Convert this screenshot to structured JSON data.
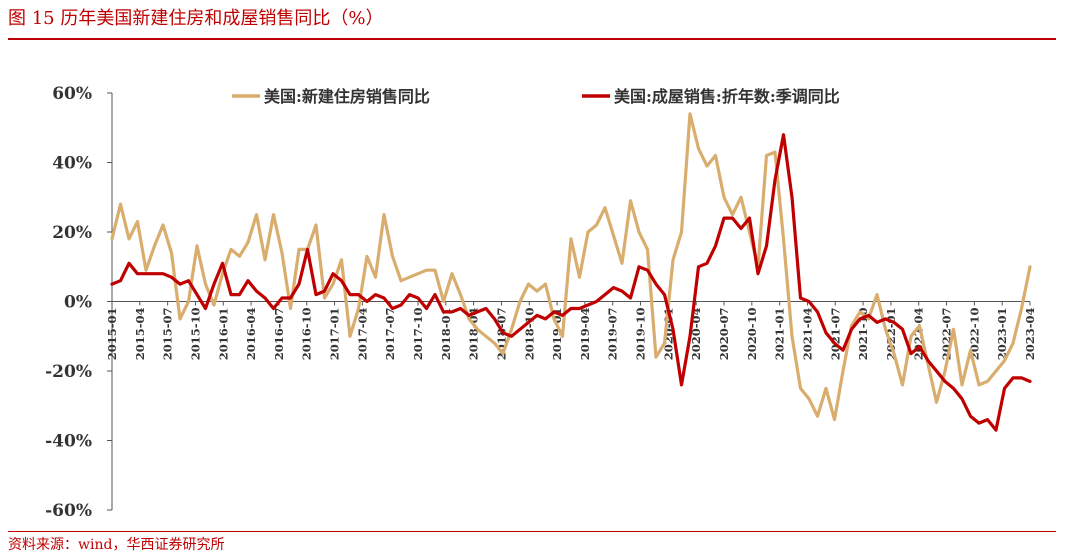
{
  "figure_title": "图 15   历年美国新建住房和成屋销售同比（%）",
  "source_note": "资料来源：wind，华西证券研究所",
  "chart_data": {
    "type": "line",
    "title": "",
    "xlabel": "",
    "ylabel": "",
    "ylim": [
      -60,
      60
    ],
    "yticks": [
      -60,
      -40,
      -20,
      0,
      20,
      40,
      60
    ],
    "ytick_format": "percent",
    "grid": false,
    "legend_position": "top",
    "x_tick_labels": [
      "2015-01",
      "2015-04",
      "2015-07",
      "2015-10",
      "2016-01",
      "2016-04",
      "2016-07",
      "2016-10",
      "2017-01",
      "2017-04",
      "2017-07",
      "2017-10",
      "2018-01",
      "2018-04",
      "2018-07",
      "2018-10",
      "2019-01",
      "2019-04",
      "2019-07",
      "2019-10",
      "2020-01",
      "2020-04",
      "2020-07",
      "2020-10",
      "2021-01",
      "2021-04",
      "2021-07",
      "2021-10",
      "2022-01",
      "2022-04",
      "2022-07",
      "2022-10",
      "2023-01",
      "2023-04"
    ],
    "x_start": "2015-01",
    "x_end": "2023-04",
    "series": [
      {
        "name": "美国:新建住房销售同比",
        "color": "#d9ad6e",
        "values": [
          18,
          28,
          18,
          23,
          9,
          16,
          22,
          14,
          -5,
          0,
          16,
          5,
          -1,
          8,
          15,
          13,
          17,
          25,
          12,
          25,
          14,
          -2,
          15,
          15,
          22,
          1,
          5,
          12,
          -10,
          -2,
          13,
          7,
          25,
          13,
          6,
          7,
          8,
          9,
          9,
          0,
          8,
          2,
          -5,
          -8,
          -10,
          -12,
          -15,
          -8,
          0,
          5,
          3,
          5,
          -5,
          -10,
          18,
          7,
          20,
          22,
          27,
          19,
          11,
          29,
          20,
          15,
          -16,
          -12,
          12,
          20,
          54,
          44,
          39,
          42,
          30,
          25,
          30,
          20,
          10,
          42,
          43,
          18,
          -10,
          -25,
          -28,
          -33,
          -25,
          -34,
          -20,
          -7,
          -3,
          -5,
          2,
          -8,
          -15,
          -24,
          -10,
          -7,
          -18,
          -29,
          -20,
          -8,
          -24,
          -14,
          -24,
          -23,
          -20,
          -17,
          -12,
          -2,
          10
        ]
      },
      {
        "name": "美国:成屋销售:折年数:季调同比",
        "color": "#c00000",
        "values": [
          5,
          6,
          11,
          8,
          8,
          8,
          8,
          7,
          5,
          6,
          2,
          -2,
          5,
          11,
          2,
          2,
          6,
          3,
          1,
          -2,
          1,
          1,
          5,
          15,
          2,
          3,
          8,
          6,
          2,
          2,
          0,
          2,
          1,
          -2,
          -1,
          2,
          1,
          -2,
          2,
          -3,
          -3,
          -2,
          -4,
          -3,
          -2,
          -5,
          -9,
          -10,
          -8,
          -6,
          -4,
          -5,
          -3,
          -4,
          -2,
          -2,
          -1,
          0,
          2,
          4,
          3,
          1,
          10,
          9,
          5,
          2,
          -8,
          -24,
          -10,
          10,
          11,
          16,
          24,
          24,
          21,
          24,
          8,
          16,
          35,
          48,
          30,
          1,
          0,
          -3,
          -9,
          -12,
          -14,
          -8,
          -5,
          -4,
          -6,
          -5,
          -6,
          -8,
          -15,
          -13,
          -17,
          -20,
          -23,
          -25,
          -28,
          -33,
          -35,
          -34,
          -37,
          -25,
          -22,
          -22,
          -23
        ]
      }
    ]
  }
}
